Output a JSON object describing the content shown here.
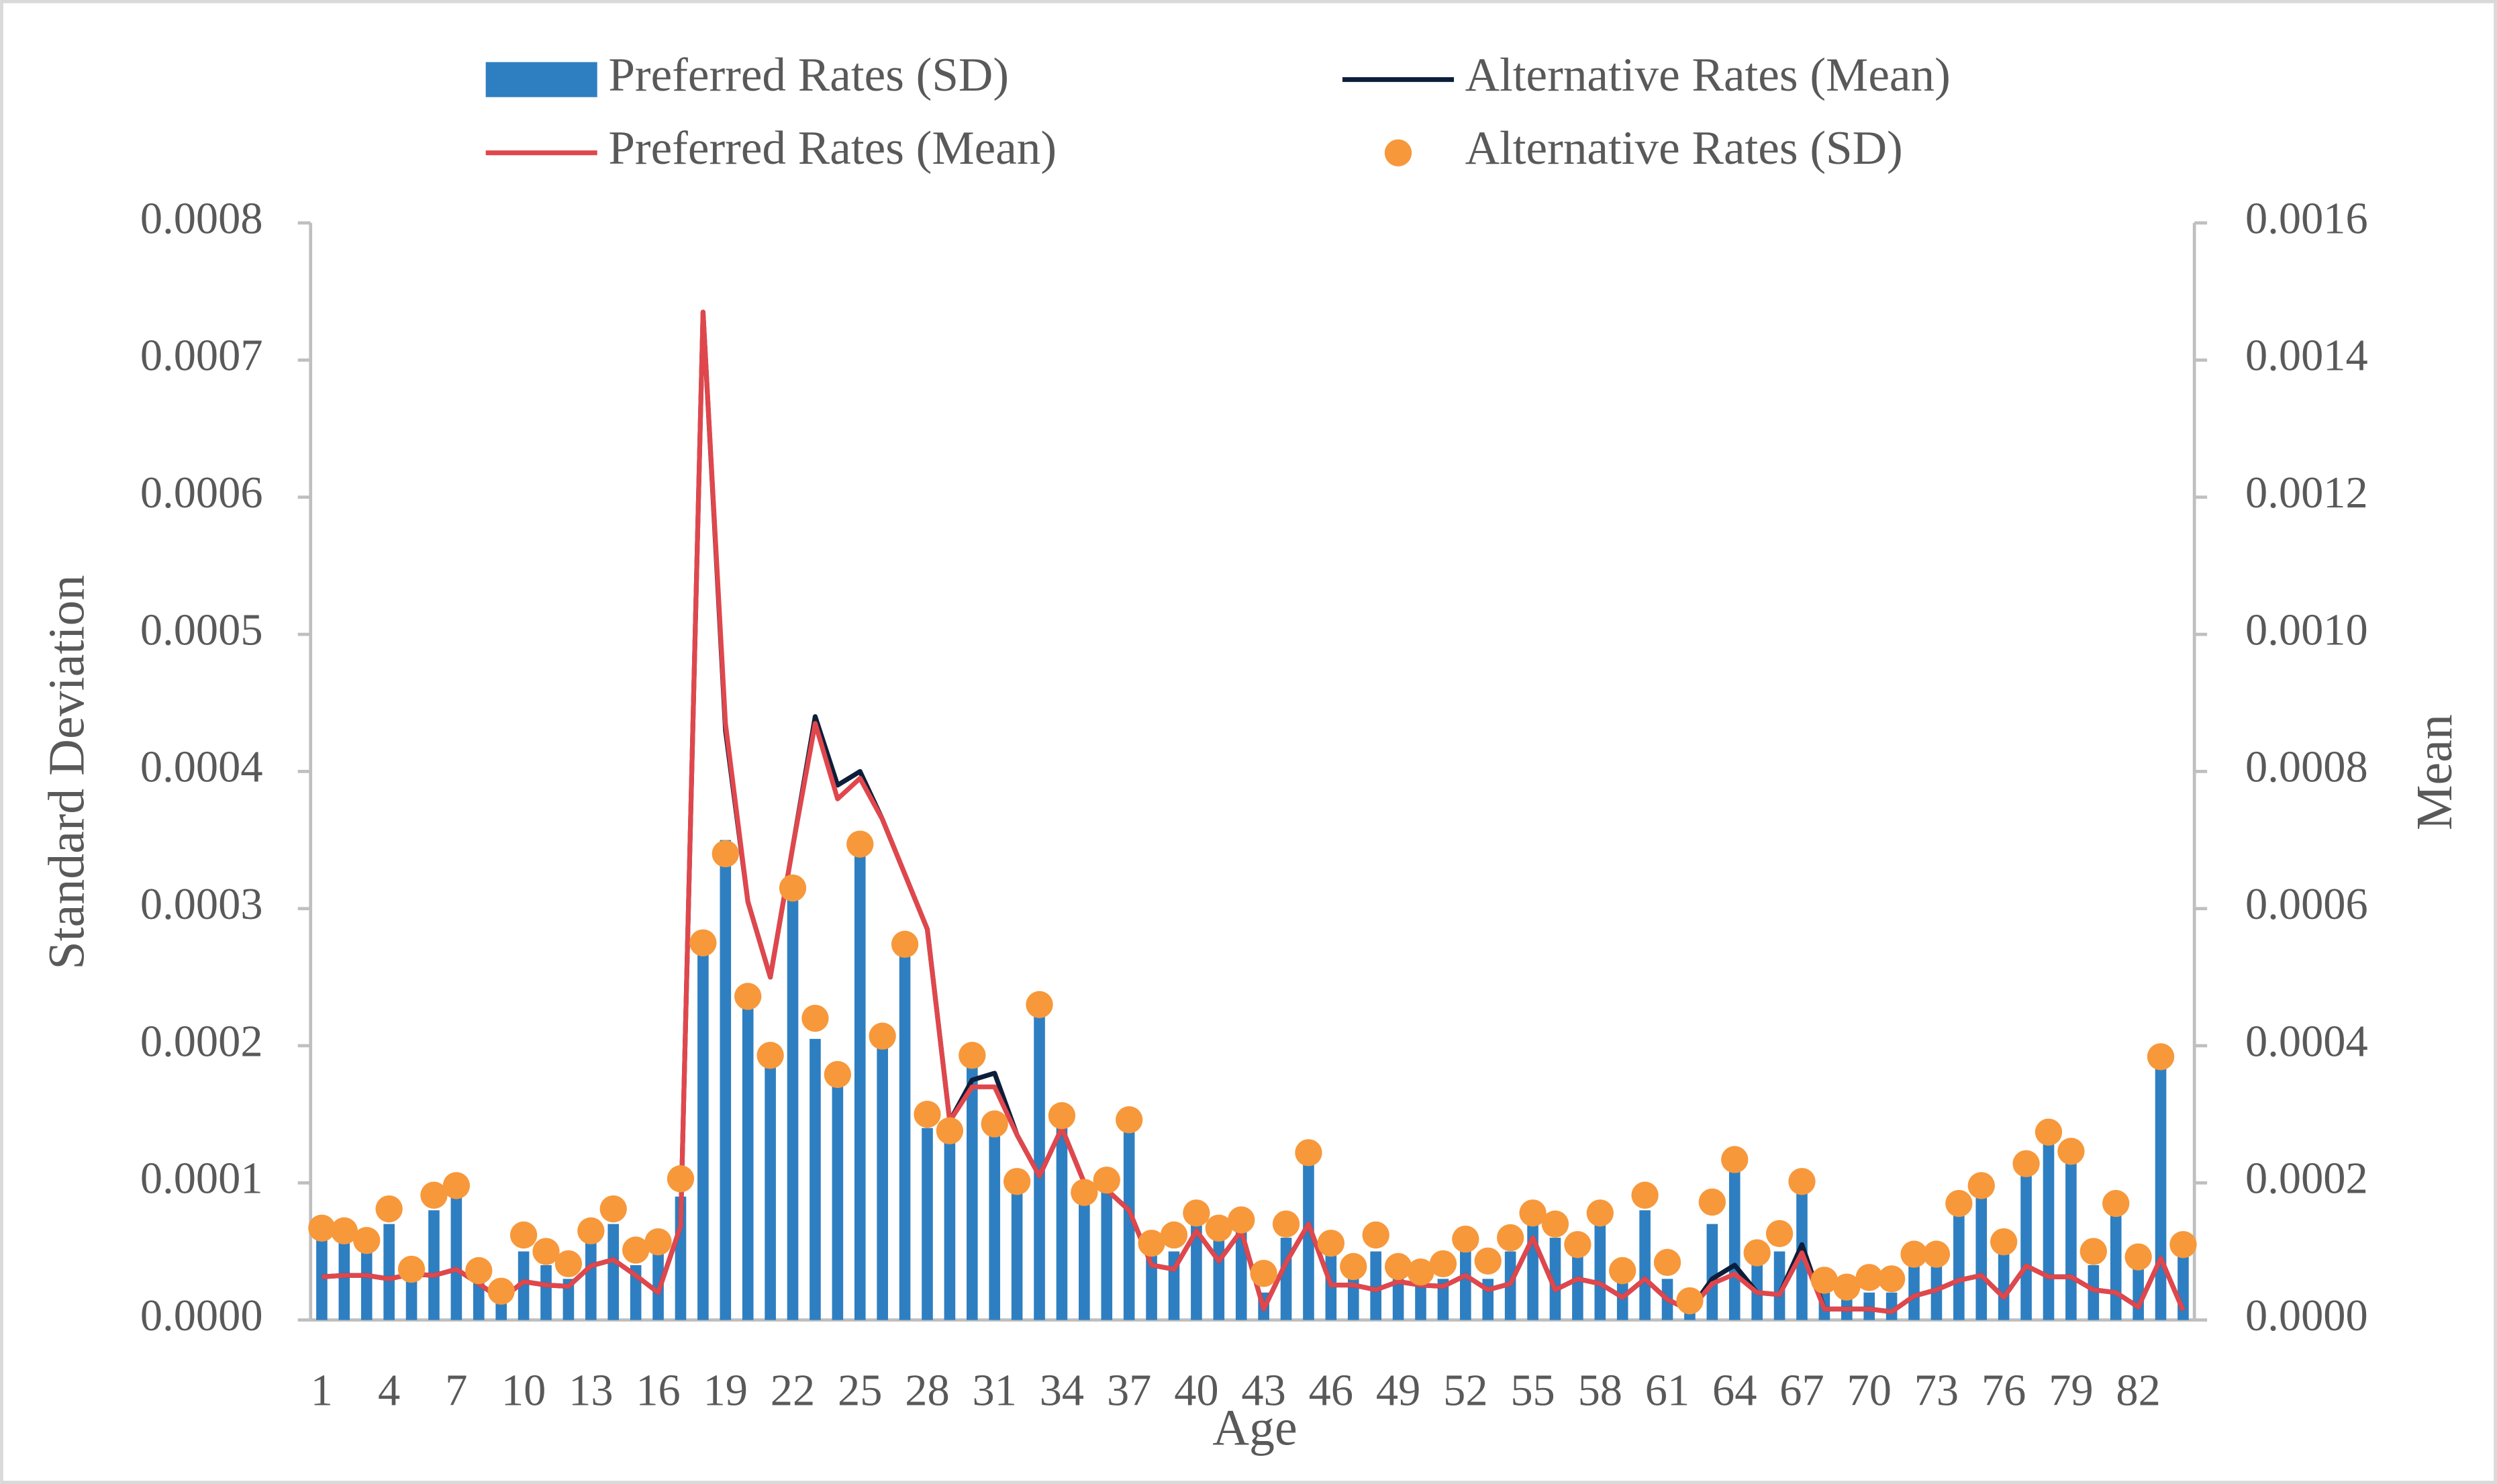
{
  "chart_data": {
    "type": "combo",
    "x_label": "Age",
    "y_label": "Standard Deviation",
    "y2_label": "Mean",
    "x": [
      1,
      2,
      3,
      4,
      5,
      6,
      7,
      8,
      9,
      10,
      11,
      12,
      13,
      14,
      15,
      16,
      17,
      18,
      19,
      20,
      21,
      22,
      23,
      24,
      25,
      26,
      27,
      28,
      29,
      30,
      31,
      32,
      33,
      34,
      35,
      36,
      37,
      38,
      39,
      40,
      41,
      42,
      43,
      44,
      45,
      46,
      47,
      48,
      49,
      50,
      51,
      52,
      53,
      54,
      55,
      56,
      57,
      58,
      59,
      60,
      61,
      62,
      63,
      64,
      65,
      66,
      67,
      68,
      69,
      70,
      71,
      72,
      73,
      74,
      75,
      76,
      77,
      78,
      79,
      80,
      81,
      82,
      83,
      84
    ],
    "xlim": [
      0.5,
      84.5
    ],
    "xticks": [
      1,
      4,
      7,
      10,
      13,
      16,
      19,
      22,
      25,
      28,
      31,
      34,
      37,
      40,
      43,
      46,
      49,
      52,
      55,
      58,
      61,
      64,
      67,
      70,
      73,
      76,
      79,
      82
    ],
    "ylim": [
      0,
      0.0008
    ],
    "yticks": [
      {
        "value": 0,
        "label": "0.0000"
      },
      {
        "value": 0.0001,
        "label": "0.0001"
      },
      {
        "value": 0.0002,
        "label": "0.0002"
      },
      {
        "value": 0.0003,
        "label": "0.0003"
      },
      {
        "value": 0.0004,
        "label": "0.0004"
      },
      {
        "value": 0.0005,
        "label": "0.0005"
      },
      {
        "value": 0.0006,
        "label": "0.0006"
      },
      {
        "value": 0.0007,
        "label": "0.0007"
      },
      {
        "value": 0.0008,
        "label": "0.0008"
      }
    ],
    "y2lim": [
      0,
      0.0016
    ],
    "y2ticks": [
      {
        "value": 0,
        "label": "0.0000"
      },
      {
        "value": 0.0002,
        "label": "0.0002"
      },
      {
        "value": 0.0004,
        "label": "0.0004"
      },
      {
        "value": 0.0006,
        "label": "0.0006"
      },
      {
        "value": 0.0008,
        "label": "0.0008"
      },
      {
        "value": 0.001,
        "label": "0.0010"
      },
      {
        "value": 0.0012,
        "label": "0.0012"
      },
      {
        "value": 0.0014,
        "label": "0.0014"
      },
      {
        "value": 0.0016,
        "label": "0.0016"
      }
    ],
    "series": [
      {
        "name": "Preferred Rates (SD)",
        "type": "bar",
        "color": "#2e7fc1",
        "values": [
          6e-05,
          6e-05,
          5e-05,
          7e-05,
          3e-05,
          8e-05,
          9e-05,
          3e-05,
          2e-05,
          5e-05,
          4e-05,
          3e-05,
          6e-05,
          7e-05,
          4e-05,
          5e-05,
          9e-05,
          0.00027,
          0.00035,
          0.00023,
          0.00019,
          0.00031,
          0.000205,
          0.000175,
          0.00034,
          0.0002,
          0.00027,
          0.00014,
          0.00013,
          0.00019,
          0.00014,
          0.0001,
          0.000225,
          0.00014,
          9e-05,
          0.0001,
          0.00014,
          5e-05,
          5e-05,
          7e-05,
          6e-05,
          7e-05,
          2e-05,
          6e-05,
          0.00012,
          5e-05,
          3e-05,
          5e-05,
          3e-05,
          3e-05,
          3e-05,
          5e-05,
          3e-05,
          5e-05,
          7e-05,
          6e-05,
          5e-05,
          7e-05,
          3e-05,
          8e-05,
          3e-05,
          1e-05,
          7e-05,
          0.00011,
          4e-05,
          5e-05,
          0.0001,
          2e-05,
          2e-05,
          2e-05,
          2e-05,
          4e-05,
          4e-05,
          8e-05,
          9e-05,
          5e-05,
          0.00011,
          0.00013,
          0.00012,
          4e-05,
          8e-05,
          4e-05,
          0.00019,
          5e-05
        ]
      },
      {
        "name": "Alternative Rates (Mean)",
        "type": "line",
        "axis": "y2",
        "color": "#0d1e3a",
        "values": [
          6.3e-05,
          6.5e-05,
          6.5e-05,
          6e-05,
          6.7e-05,
          6.5e-05,
          7.4e-05,
          5.3e-05,
          3e-05,
          5.6e-05,
          5.1e-05,
          4.9e-05,
          7.9e-05,
          8.8e-05,
          6.5e-05,
          4e-05,
          0.000137,
          0.00147,
          0.00086,
          0.00061,
          0.0005,
          0.00069,
          0.00088,
          0.00078,
          0.0008,
          0.00073,
          0.00065,
          0.00057,
          0.00029,
          0.00035,
          0.00036,
          0.00027,
          0.00021,
          0.00028,
          0.0002,
          0.00019,
          0.00016,
          8e-05,
          7.4e-05,
          0.00013,
          8.6e-05,
          0.00013,
          1.6e-05,
          8.4e-05,
          0.00014,
          5.1e-05,
          5.1e-05,
          4.4e-05,
          5.6e-05,
          5.1e-05,
          4.9e-05,
          6.5e-05,
          4.4e-05,
          5.3e-05,
          0.00012,
          4.4e-05,
          6e-05,
          5.3e-05,
          3.3e-05,
          6e-05,
          3e-05,
          1.4e-05,
          6e-05,
          8e-05,
          4e-05,
          3.7e-05,
          0.00011,
          1.6e-05,
          1.6e-05,
          1.6e-05,
          1.2e-05,
          3.5e-05,
          4.4e-05,
          5.8e-05,
          6.5e-05,
          3.3e-05,
          7.9e-05,
          6.3e-05,
          6.3e-05,
          4.4e-05,
          4e-05,
          1.9e-05,
          9e-05,
          1.4e-05
        ]
      },
      {
        "name": "Preferred Rates (Mean)",
        "type": "line",
        "axis": "y2",
        "color": "#e0474c",
        "values": [
          6.3e-05,
          6.5e-05,
          6.5e-05,
          6e-05,
          6.7e-05,
          6.5e-05,
          7.4e-05,
          5.3e-05,
          3e-05,
          5.6e-05,
          5.1e-05,
          4.9e-05,
          7.9e-05,
          8.8e-05,
          6.5e-05,
          4e-05,
          0.000137,
          0.00147,
          0.00087,
          0.00061,
          0.0005,
          0.00069,
          0.00087,
          0.00076,
          0.00079,
          0.00073,
          0.00065,
          0.00057,
          0.00029,
          0.00034,
          0.00034,
          0.00027,
          0.00021,
          0.00028,
          0.0002,
          0.00019,
          0.00016,
          8e-05,
          7.4e-05,
          0.00013,
          8.6e-05,
          0.00013,
          1.6e-05,
          8.4e-05,
          0.00014,
          5.1e-05,
          5.1e-05,
          4.4e-05,
          5.6e-05,
          5.1e-05,
          4.9e-05,
          6.5e-05,
          4.4e-05,
          5.3e-05,
          0.00012,
          4.4e-05,
          6e-05,
          5.3e-05,
          3.3e-05,
          6e-05,
          3e-05,
          1.4e-05,
          5.3e-05,
          6.7e-05,
          4e-05,
          3.7e-05,
          9.8e-05,
          1.6e-05,
          1.6e-05,
          1.6e-05,
          1.2e-05,
          3.5e-05,
          4.4e-05,
          5.8e-05,
          6.5e-05,
          3.3e-05,
          7.9e-05,
          6.3e-05,
          6.3e-05,
          4.4e-05,
          4e-05,
          1.9e-05,
          9e-05,
          1.4e-05
        ]
      },
      {
        "name": "Alternative Rates (SD)",
        "type": "scatter",
        "color": "#f7983b",
        "values": [
          6.7e-05,
          6.5e-05,
          5.8e-05,
          8.1e-05,
          3.7e-05,
          9.1e-05,
          9.8e-05,
          3.6e-05,
          2.1e-05,
          6.2e-05,
          5e-05,
          4.1e-05,
          6.5e-05,
          8.1e-05,
          5.1e-05,
          5.7e-05,
          0.000103,
          0.000275,
          0.00034,
          0.000236,
          0.000193,
          0.000315,
          0.00022,
          0.000179,
          0.000347,
          0.000207,
          0.000274,
          0.00015,
          0.000138,
          0.000193,
          0.000143,
          0.000101,
          0.00023,
          0.000149,
          9.3e-05,
          0.000102,
          0.000146,
          5.6e-05,
          6.2e-05,
          7.8e-05,
          6.7e-05,
          7.3e-05,
          3.4e-05,
          7e-05,
          0.000122,
          5.6e-05,
          3.9e-05,
          6.2e-05,
          3.9e-05,
          3.5e-05,
          4.1e-05,
          5.9e-05,
          4.3e-05,
          6e-05,
          7.8e-05,
          7e-05,
          5.5e-05,
          7.8e-05,
          3.6e-05,
          9.1e-05,
          4.2e-05,
          1.4e-05,
          8.6e-05,
          0.000117,
          4.9e-05,
          6.3e-05,
          0.000101,
          2.9e-05,
          2.4e-05,
          3.1e-05,
          3e-05,
          4.8e-05,
          4.8e-05,
          8.5e-05,
          9.8e-05,
          5.7e-05,
          0.000114,
          0.000137,
          0.000123,
          5e-05,
          8.5e-05,
          4.6e-05,
          0.000192,
          5.5e-05
        ]
      }
    ]
  }
}
